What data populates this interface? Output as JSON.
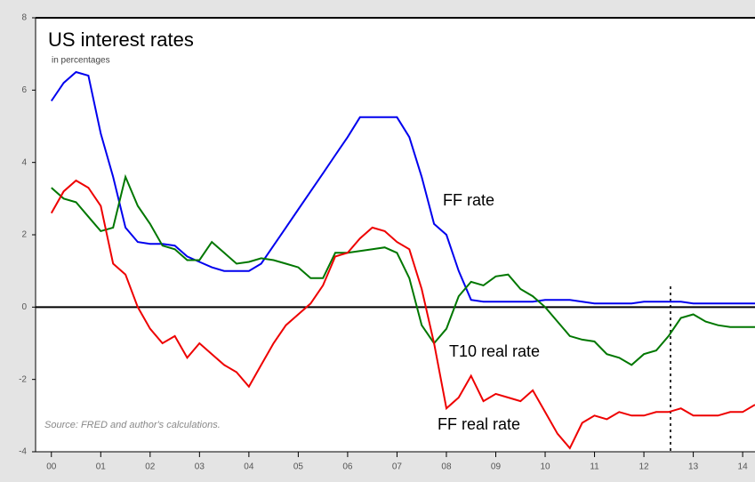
{
  "chart_data": {
    "type": "line",
    "title": "US interest rates",
    "subtitle": "in percentages",
    "source": "Source: FRED and author's calculations.",
    "x": [
      2000,
      2000.25,
      2000.5,
      2000.75,
      2001,
      2001.25,
      2001.5,
      2001.75,
      2002,
      2002.25,
      2002.5,
      2002.75,
      2003,
      2003.25,
      2003.5,
      2003.75,
      2004,
      2004.25,
      2004.5,
      2004.75,
      2005,
      2005.25,
      2005.5,
      2005.75,
      2006,
      2006.25,
      2006.5,
      2006.75,
      2007,
      2007.25,
      2007.5,
      2007.75,
      2008,
      2008.25,
      2008.5,
      2008.75,
      2009,
      2009.25,
      2009.5,
      2009.75,
      2010,
      2010.25,
      2010.5,
      2010.75,
      2011,
      2011.25,
      2011.5,
      2011.75,
      2012,
      2012.25,
      2012.5,
      2012.75,
      2013,
      2013.25,
      2013.5,
      2013.75,
      2014,
      2014.25
    ],
    "series": [
      {
        "name": "FF rate",
        "color": "#0000ee",
        "values": [
          5.7,
          6.2,
          6.5,
          6.4,
          4.8,
          3.6,
          2.2,
          1.8,
          1.75,
          1.75,
          1.7,
          1.4,
          1.25,
          1.1,
          1.0,
          1.0,
          1.0,
          1.2,
          1.7,
          2.2,
          2.7,
          3.2,
          3.7,
          4.2,
          4.7,
          5.25,
          5.25,
          5.25,
          5.25,
          4.7,
          3.6,
          2.3,
          2.0,
          1.0,
          0.2,
          0.15,
          0.15,
          0.15,
          0.15,
          0.15,
          0.2,
          0.2,
          0.2,
          0.15,
          0.1,
          0.1,
          0.1,
          0.1,
          0.15,
          0.15,
          0.15,
          0.15,
          0.1,
          0.1,
          0.1,
          0.1,
          0.1,
          0.1
        ]
      },
      {
        "name": "T10 real rate",
        "color": "#007700",
        "values": [
          3.3,
          3.0,
          2.9,
          2.5,
          2.1,
          2.2,
          3.6,
          2.8,
          2.3,
          1.7,
          1.6,
          1.3,
          1.3,
          1.8,
          1.5,
          1.2,
          1.25,
          1.35,
          1.3,
          1.2,
          1.1,
          0.8,
          0.8,
          1.5,
          1.5,
          1.55,
          1.6,
          1.65,
          1.5,
          0.8,
          -0.5,
          -1.0,
          -0.6,
          0.3,
          0.7,
          0.6,
          0.85,
          0.9,
          0.5,
          0.3,
          0.0,
          -0.4,
          -0.8,
          -0.9,
          -0.95,
          -1.3,
          -1.4,
          -1.6,
          -1.3,
          -1.2,
          -0.8,
          -0.3,
          -0.2,
          -0.4,
          -0.5,
          -0.55,
          -0.55,
          -0.55
        ]
      },
      {
        "name": "FF real rate",
        "color": "#ee0000",
        "values": [
          2.6,
          3.2,
          3.5,
          3.3,
          2.8,
          1.2,
          0.9,
          0.0,
          -0.6,
          -1.0,
          -0.8,
          -1.4,
          -1.0,
          -1.3,
          -1.6,
          -1.8,
          -2.2,
          -1.6,
          -1.0,
          -0.5,
          -0.2,
          0.1,
          0.6,
          1.4,
          1.5,
          1.9,
          2.2,
          2.1,
          1.8,
          1.6,
          0.5,
          -1.0,
          -2.8,
          -2.5,
          -1.9,
          -2.6,
          -2.4,
          -2.5,
          -2.6,
          -2.3,
          -2.9,
          -3.5,
          -3.9,
          -3.2,
          -3.0,
          -3.1,
          -2.9,
          -3.0,
          -3.0,
          -2.9,
          -2.9,
          -2.8,
          -3.0,
          -3.0,
          -3.0,
          -2.9,
          -2.9,
          -2.7
        ]
      }
    ],
    "xlim": [
      1999.68,
      2014.25
    ],
    "xticks": [
      {
        "value": 2000,
        "label": "00"
      },
      {
        "value": 2001,
        "label": "01"
      },
      {
        "value": 2002,
        "label": "02"
      },
      {
        "value": 2003,
        "label": "03"
      },
      {
        "value": 2004,
        "label": "04"
      },
      {
        "value": 2005,
        "label": "05"
      },
      {
        "value": 2006,
        "label": "06"
      },
      {
        "value": 2007,
        "label": "07"
      },
      {
        "value": 2008,
        "label": "08"
      },
      {
        "value": 2009,
        "label": "09"
      },
      {
        "value": 2010,
        "label": "10"
      },
      {
        "value": 2011,
        "label": "11"
      },
      {
        "value": 2012,
        "label": "12"
      },
      {
        "value": 2013,
        "label": "13"
      },
      {
        "value": 2014,
        "label": "14"
      }
    ],
    "ylim": [
      -4,
      8
    ],
    "yticks": [
      -4,
      -2,
      0,
      2,
      4,
      6,
      8
    ]
  }
}
